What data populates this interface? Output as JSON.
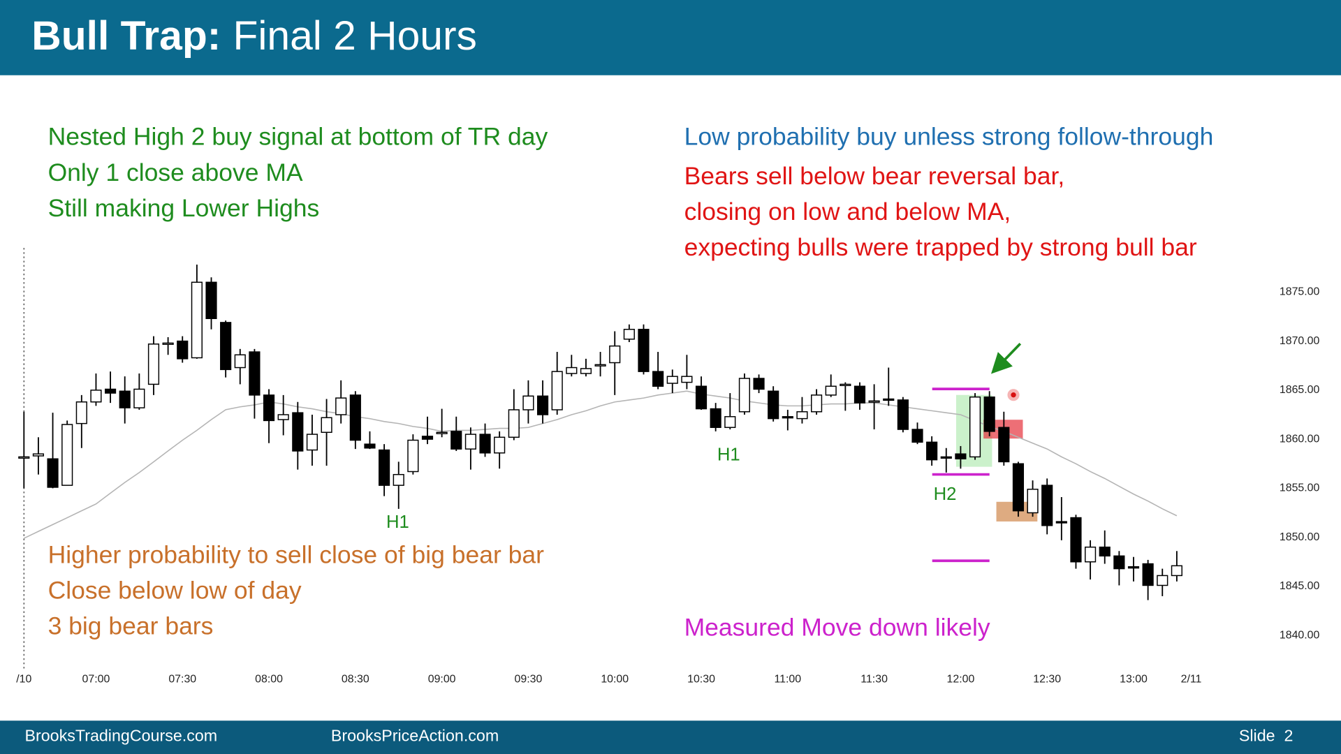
{
  "header": {
    "title_bold": "Bull Trap:",
    "title": "Final 2 Hours"
  },
  "chart_data": {
    "type": "candlestick",
    "categories": [
      "/10",
      null,
      null,
      null,
      null,
      "07:00",
      null,
      null,
      null,
      null,
      null,
      "07:30",
      null,
      null,
      null,
      null,
      null,
      "08:00",
      null,
      null,
      null,
      null,
      null,
      "08:30",
      null,
      null,
      null,
      null,
      null,
      "09:00",
      null,
      null,
      null,
      null,
      null,
      "09:30",
      null,
      null,
      null,
      null,
      null,
      "10:00",
      null,
      null,
      null,
      null,
      null,
      "10:30",
      null,
      null,
      null,
      null,
      null,
      "11:00",
      null,
      null,
      null,
      null,
      null,
      "11:30",
      null,
      null,
      null,
      null,
      null,
      "12:00",
      null,
      null,
      null,
      null,
      null,
      "12:30",
      null,
      null,
      null,
      null,
      null,
      "13:00",
      null,
      null,
      null,
      "2/11"
    ],
    "open": [
      1858.1,
      1858.3,
      1858,
      1855.3,
      1861.6,
      1863.8,
      1865.1,
      1864.9,
      1863.2,
      1865.6,
      1869.7,
      1870,
      1868.3,
      1876,
      1871.9,
      1867.3,
      1868.9,
      1864.5,
      1862,
      1862.7,
      1858.9,
      1860.7,
      1862.5,
      1864.5,
      1859.5,
      1858.9,
      1855.3,
      1856.7,
      1860.3,
      1860.6,
      1860.8,
      1859,
      1860.5,
      1858.6,
      1860.2,
      1863,
      1864.4,
      1863,
      1866.7,
      1866.7,
      1867.5,
      1867.8,
      1870.2,
      1871.2,
      1866.9,
      1865.7,
      1865.8,
      1865.4,
      1863.1,
      1861.2,
      1862.8,
      1866.2,
      1864.9,
      1862.3,
      1862.1,
      1862.8,
      1864.5,
      1865.5,
      1865.4,
      1863.8,
      1864.1,
      1864,
      1861,
      1859.7,
      1858.2,
      1858.5,
      1858.2,
      1864.3,
      1861.2,
      1857.5,
      1852.5,
      1855.3,
      1851.6,
      1852,
      1847.5,
      1849,
      1848.1,
      1847,
      1847.3,
      1845.1,
      1846.1,
      null
    ],
    "high": [
      1862.8,
      1860.2,
      1862.7,
      1861.9,
      1864.5,
      1866.7,
      1866.9,
      1866.4,
      1866.7,
      1870.5,
      1870.4,
      1870.5,
      1877.8,
      1876.5,
      1872.1,
      1869.2,
      1869.2,
      1865.1,
      1864.5,
      1863.8,
      1862.5,
      1864.1,
      1866,
      1864.9,
      1860.8,
      1859.5,
      1857.7,
      1860.5,
      1862.3,
      1863.1,
      1862.3,
      1861.2,
      1861.6,
      1860.8,
      1865.1,
      1866,
      1866,
      1868.9,
      1868.6,
      1868.2,
      1868.9,
      1871,
      1871.7,
      1871.7,
      1868.9,
      1867.1,
      1868.6,
      1866.4,
      1863.7,
      1864.7,
      1866.7,
      1866.6,
      1865.4,
      1863,
      1864.3,
      1865.1,
      1866.6,
      1865.8,
      1865.8,
      1865.6,
      1867.3,
      1864.3,
      1861.7,
      1860.3,
      1859.1,
      1859.3,
      1864.7,
      1864.9,
      1862.8,
      1857.7,
      1855.8,
      1856,
      1854.1,
      1852.3,
      1849.7,
      1850.7,
      1848.6,
      1848,
      1847.7,
      1846.8,
      1848.6,
      null
    ],
    "low": [
      1855,
      1856.4,
      1855,
      1855.3,
      1859.1,
      1863.4,
      1863.7,
      1861.6,
      1863,
      1864.5,
      1868.6,
      1867.8,
      1868.2,
      1871.2,
      1866.3,
      1865.6,
      1862.1,
      1859.6,
      1860.4,
      1856.9,
      1857.3,
      1857.3,
      1861.6,
      1859,
      1859,
      1854.2,
      1852.9,
      1856.4,
      1859.5,
      1860.2,
      1858.8,
      1856.9,
      1858.2,
      1857,
      1859.9,
      1861.6,
      1861.6,
      1862.5,
      1866.4,
      1866.4,
      1866.4,
      1864.5,
      1869.9,
      1866.6,
      1865.1,
      1864.7,
      1865.1,
      1863,
      1860.8,
      1861,
      1862.5,
      1864.7,
      1861.8,
      1860.9,
      1861.6,
      1862.5,
      1864.3,
      1862.9,
      1863,
      1861,
      1863.4,
      1860.7,
      1859.5,
      1857.3,
      1856.6,
      1857,
      1857.9,
      1860.3,
      1857.3,
      1852.1,
      1852.1,
      1850.3,
      1849.7,
      1846.8,
      1845.7,
      1847.3,
      1845.1,
      1845.5,
      1843.6,
      1844,
      1845.5,
      null
    ],
    "close": [
      1858.2,
      1858.5,
      1855.1,
      1861.5,
      1863.8,
      1865,
      1864.7,
      1863.2,
      1865.1,
      1869.7,
      1869.8,
      1868.2,
      1876,
      1872.3,
      1867.1,
      1868.6,
      1864.5,
      1861.9,
      1862.5,
      1858.8,
      1860.5,
      1862.2,
      1864.2,
      1859.9,
      1859.1,
      1855.3,
      1856.4,
      1859.9,
      1860,
      1860.7,
      1859,
      1860.5,
      1858.6,
      1860.2,
      1863,
      1864.4,
      1862.5,
      1866.9,
      1867.3,
      1867.2,
      1867.6,
      1869.5,
      1871.2,
      1866.9,
      1865.4,
      1866.4,
      1866.4,
      1863.1,
      1861.2,
      1862.3,
      1866.2,
      1865.1,
      1862.1,
      1862.2,
      1862.8,
      1864.5,
      1865.4,
      1865.6,
      1863.7,
      1863.9,
      1864,
      1861,
      1859.7,
      1857.9,
      1858.1,
      1858,
      1864.3,
      1860.8,
      1857.7,
      1852.7,
      1854.9,
      1851.2,
      1851.5,
      1847.5,
      1849,
      1848.1,
      1846.8,
      1846.9,
      1845.1,
      1846.1,
      1847.1,
      null
    ],
    "moving_average": {
      "color": "#b4b4b4",
      "values": [
        1849.9,
        1850.6,
        1851.3,
        1852,
        1852.7,
        1853.4,
        1854.5,
        1855.6,
        1856.6,
        1857.7,
        1858.8,
        1859.9,
        1860.9,
        1862,
        1863,
        1863.3,
        1863.5,
        1863.8,
        1863.6,
        1863.3,
        1863.1,
        1862.8,
        1862.6,
        1862.3,
        1862.1,
        1861.8,
        1861.6,
        1861.3,
        1861.1,
        1860.8,
        1860.9,
        1860.9,
        1861,
        1861.1,
        1861.1,
        1861.2,
        1861.6,
        1862,
        1862.5,
        1862.9,
        1863.4,
        1863.8,
        1864,
        1864.2,
        1864.5,
        1864.7,
        1864.9,
        1864.6,
        1864.4,
        1864.2,
        1863.9,
        1863.7,
        1863.5,
        1863.4,
        1863.4,
        1863.5,
        1863.6,
        1863.6,
        1863.7,
        1863.7,
        1863.5,
        1863.3,
        1863.1,
        1862.9,
        1862.7,
        1862.5,
        1861.9,
        1861.3,
        1860.8,
        1860.2,
        1859.6,
        1859,
        1858.2,
        1857.5,
        1856.7,
        1856,
        1855.2,
        1854.4,
        1853.7,
        1852.9,
        1852.2,
        null
      ]
    },
    "up_color": "#ffffff",
    "down_color": "#000000",
    "ylim": [
      1836.8,
      1879.5
    ],
    "yticks": [
      {
        "value": 1875,
        "label": "1875.00"
      },
      {
        "value": 1870,
        "label": "1870.00"
      },
      {
        "value": 1865,
        "label": "1865.00"
      },
      {
        "value": 1860,
        "label": "1860.00"
      },
      {
        "value": 1855,
        "label": "1855.00"
      },
      {
        "value": 1850,
        "label": "1850.00"
      },
      {
        "value": 1845,
        "label": "1845.00"
      },
      {
        "value": 1840,
        "label": "1840.00"
      }
    ],
    "grid": false,
    "bar_labels": [
      "H1",
      "H1",
      "H2"
    ],
    "bar_label_color": "#1e8c1e",
    "annotations": [
      {
        "color": "#1e8c1e",
        "lines": [
          "Nested High 2 buy signal at bottom of TR day",
          "Only 1 close above MA",
          "Still making Lower Highs"
        ]
      },
      {
        "color": "#1f6fb0",
        "lines": [
          "Low probability buy unless strong follow-through"
        ]
      },
      {
        "color": "#e01414",
        "lines": [
          "Bears sell below bear reversal bar,",
          "closing on low and below MA,",
          "expecting bulls were trapped by strong bull bar"
        ]
      },
      {
        "color": "#c8702a",
        "lines": [
          "Higher probability to sell close of big bear bar",
          "Close below low of day",
          "3 big bear bars"
        ]
      },
      {
        "color": "#cc22cc",
        "lines": [
          "Measured Move down likely"
        ]
      }
    ]
  },
  "footer": {
    "left": "BrooksTradingCourse.com",
    "center": "BrooksPriceAction.com",
    "right": "Slide  2"
  }
}
